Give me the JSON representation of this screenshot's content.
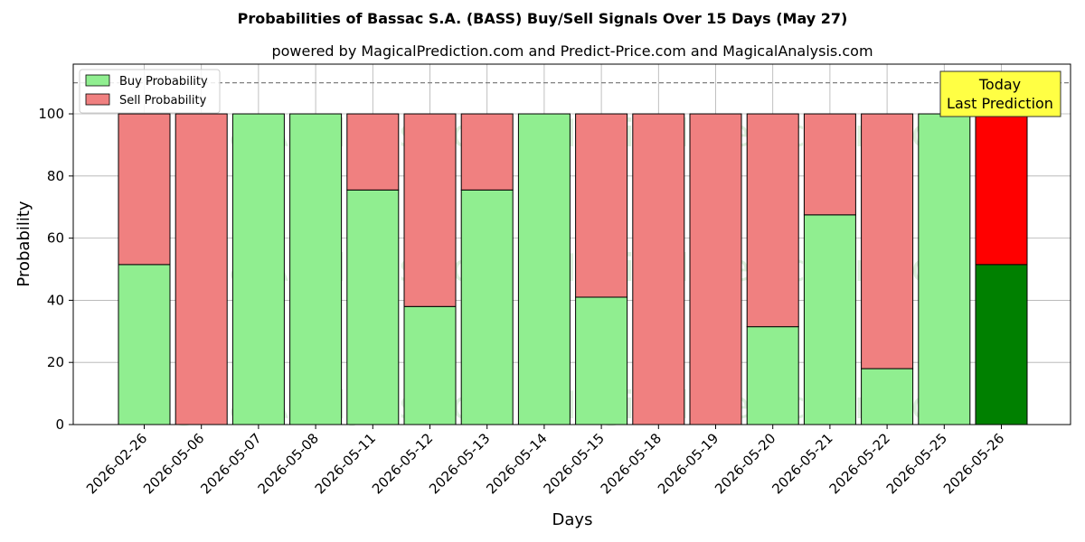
{
  "chart_data": {
    "type": "bar",
    "stacked": true,
    "title": "Probabilities of Bassac S.A. (BASS) Buy/Sell Signals Over 15 Days (May 27)",
    "subtitle": "powered by MagicalPrediction.com and Predict-Price.com and MagicalAnalysis.com",
    "xlabel": "Days",
    "ylabel": "Probability",
    "ylim": [
      0,
      116
    ],
    "yticks": [
      0,
      20,
      40,
      60,
      80,
      100
    ],
    "grid": true,
    "legend_position": "top-left",
    "reference_line": 110,
    "categories": [
      "2026-02-26",
      "2026-05-06",
      "2026-05-07",
      "2026-05-08",
      "2026-05-11",
      "2026-05-12",
      "2026-05-13",
      "2026-05-14",
      "2026-05-15",
      "2026-05-18",
      "2026-05-19",
      "2026-05-20",
      "2026-05-21",
      "2026-05-22",
      "2026-05-25",
      "2026-05-26"
    ],
    "series": [
      {
        "name": "Buy Probability",
        "color": "#90ee90",
        "highlight_color": "#008000",
        "values": [
          51.5,
          0,
          100,
          100,
          75.5,
          38,
          75.5,
          100,
          41,
          0,
          0,
          31.5,
          67.5,
          18,
          100,
          51.5
        ]
      },
      {
        "name": "Sell Probability",
        "color": "#f08080",
        "highlight_color": "#ff0000",
        "values": [
          48.5,
          100,
          0,
          0,
          24.5,
          62,
          24.5,
          0,
          59,
          100,
          100,
          68.5,
          32.5,
          82,
          0,
          48.5
        ]
      }
    ],
    "highlight_index": 15,
    "annotation": {
      "line1": "Today",
      "line2": "Last Prediction"
    },
    "watermarks": [
      "MagicalAnalysis.com",
      "MagicalPrediction.com"
    ]
  }
}
